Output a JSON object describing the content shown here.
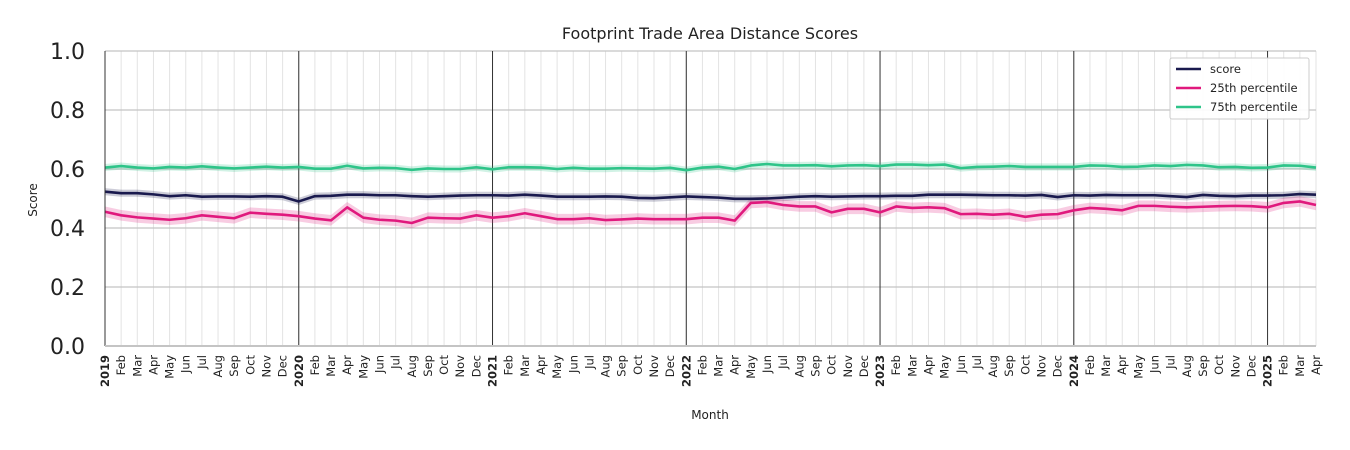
{
  "chart_data": {
    "type": "line",
    "title": "Footprint Trade Area Distance Scores",
    "xlabel": "Month",
    "ylabel": "Score",
    "ylim": [
      0,
      1
    ],
    "yticks": [
      "0.0",
      "0.2",
      "0.4",
      "0.6",
      "0.8",
      "1.0"
    ],
    "x": [
      "2019",
      "Feb",
      "Mar",
      "Apr",
      "May",
      "Jun",
      "Jul",
      "Aug",
      "Sep",
      "Oct",
      "Nov",
      "Dec",
      "2020",
      "Feb",
      "Mar",
      "Apr",
      "May",
      "Jun",
      "Jul",
      "Aug",
      "Sep",
      "Oct",
      "Nov",
      "Dec",
      "2021",
      "Feb",
      "Mar",
      "Apr",
      "May",
      "Jun",
      "Jul",
      "Aug",
      "Sep",
      "Oct",
      "Nov",
      "Dec",
      "2022",
      "Feb",
      "Mar",
      "Apr",
      "May",
      "Jun",
      "Jul",
      "Aug",
      "Sep",
      "Oct",
      "Nov",
      "Dec",
      "2023",
      "Feb",
      "Mar",
      "Apr",
      "May",
      "Jun",
      "Jul",
      "Aug",
      "Sep",
      "Oct",
      "Nov",
      "Dec",
      "2024",
      "Feb",
      "Mar",
      "Apr",
      "May",
      "Jun",
      "Jul",
      "Aug",
      "Sep",
      "Oct",
      "Nov",
      "Dec",
      "2025",
      "Feb",
      "Mar",
      "Apr"
    ],
    "year_labels": [
      "2019",
      "2020",
      "2021",
      "2022",
      "2023",
      "2024",
      "2025"
    ],
    "grid": true,
    "legend_position": "top-right",
    "series": [
      {
        "name": "score",
        "color": "#1a1a4e",
        "band": 0.012,
        "values": [
          0.523,
          0.518,
          0.518,
          0.514,
          0.508,
          0.511,
          0.506,
          0.507,
          0.507,
          0.506,
          0.508,
          0.506,
          0.49,
          0.508,
          0.509,
          0.513,
          0.513,
          0.511,
          0.511,
          0.508,
          0.506,
          0.508,
          0.51,
          0.511,
          0.511,
          0.51,
          0.513,
          0.51,
          0.506,
          0.506,
          0.506,
          0.507,
          0.506,
          0.502,
          0.501,
          0.504,
          0.507,
          0.505,
          0.503,
          0.499,
          0.499,
          0.5,
          0.503,
          0.506,
          0.508,
          0.506,
          0.507,
          0.508,
          0.508,
          0.509,
          0.509,
          0.513,
          0.513,
          0.513,
          0.512,
          0.511,
          0.511,
          0.51,
          0.512,
          0.505,
          0.511,
          0.51,
          0.512,
          0.511,
          0.511,
          0.511,
          0.508,
          0.505,
          0.512,
          0.509,
          0.508,
          0.51,
          0.51,
          0.511,
          0.515,
          0.513
        ]
      },
      {
        "name": "25th percentile",
        "color": "#e0197d",
        "band": 0.018,
        "values": [
          0.455,
          0.443,
          0.436,
          0.432,
          0.428,
          0.433,
          0.443,
          0.438,
          0.433,
          0.452,
          0.448,
          0.445,
          0.44,
          0.432,
          0.426,
          0.47,
          0.435,
          0.428,
          0.425,
          0.417,
          0.435,
          0.433,
          0.432,
          0.443,
          0.435,
          0.44,
          0.45,
          0.44,
          0.43,
          0.43,
          0.433,
          0.427,
          0.429,
          0.432,
          0.43,
          0.43,
          0.43,
          0.435,
          0.435,
          0.425,
          0.485,
          0.488,
          0.478,
          0.473,
          0.473,
          0.453,
          0.465,
          0.465,
          0.453,
          0.473,
          0.468,
          0.47,
          0.467,
          0.447,
          0.448,
          0.445,
          0.448,
          0.438,
          0.445,
          0.447,
          0.46,
          0.468,
          0.465,
          0.46,
          0.475,
          0.475,
          0.472,
          0.47,
          0.472,
          0.474,
          0.475,
          0.474,
          0.47,
          0.485,
          0.49,
          0.478
        ]
      },
      {
        "name": "75th percentile",
        "color": "#2ec489",
        "band": 0.012,
        "values": [
          0.605,
          0.61,
          0.605,
          0.602,
          0.607,
          0.605,
          0.609,
          0.605,
          0.602,
          0.605,
          0.608,
          0.605,
          0.607,
          0.601,
          0.601,
          0.611,
          0.602,
          0.604,
          0.603,
          0.597,
          0.602,
          0.6,
          0.6,
          0.606,
          0.599,
          0.606,
          0.606,
          0.605,
          0.6,
          0.604,
          0.601,
          0.601,
          0.603,
          0.602,
          0.601,
          0.604,
          0.596,
          0.605,
          0.608,
          0.6,
          0.612,
          0.617,
          0.612,
          0.612,
          0.613,
          0.609,
          0.612,
          0.613,
          0.61,
          0.615,
          0.615,
          0.613,
          0.615,
          0.603,
          0.607,
          0.608,
          0.61,
          0.607,
          0.607,
          0.607,
          0.607,
          0.612,
          0.611,
          0.607,
          0.608,
          0.612,
          0.61,
          0.614,
          0.612,
          0.606,
          0.607,
          0.604,
          0.605,
          0.612,
          0.611,
          0.605
        ]
      }
    ]
  }
}
